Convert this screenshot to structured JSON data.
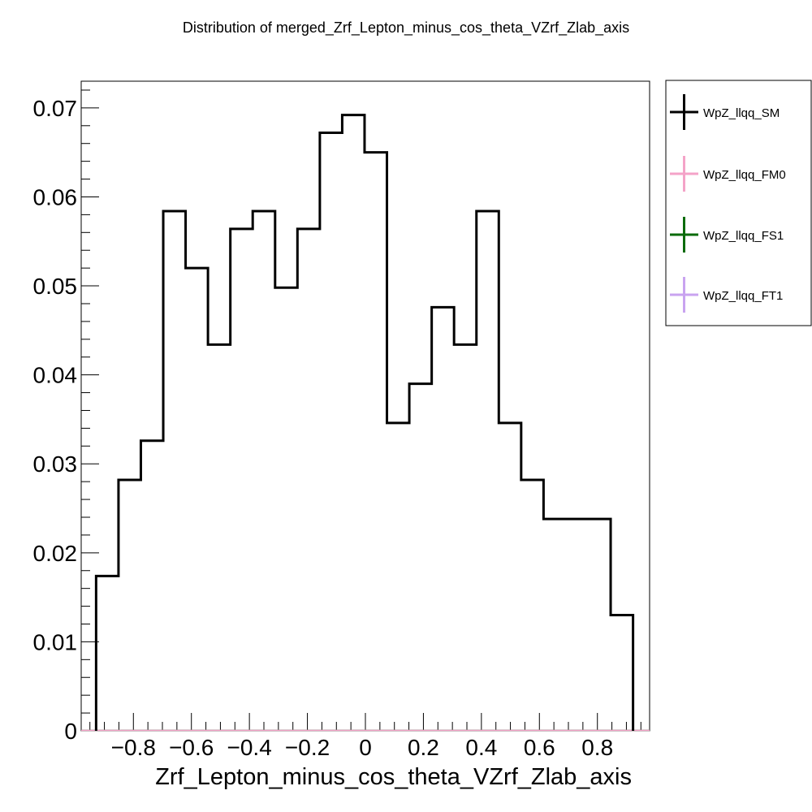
{
  "chart_data": {
    "type": "histogram",
    "title": "Distribution of merged_Zrf_Lepton_minus_cos_theta_VZrf_Zlab_axis",
    "xlabel": "Zrf_Lepton_minus_cos_theta_VZrf_Zlab_axis",
    "ylabel": "",
    "xlim": [
      -0.98,
      0.98
    ],
    "ylim": [
      0,
      0.073
    ],
    "grid": false,
    "legend_position": "right",
    "x_ticks": [
      -0.8,
      -0.6,
      -0.4,
      -0.2,
      0,
      0.2,
      0.4,
      0.6,
      0.8
    ],
    "x_tick_labels": [
      "−0.8",
      "−0.6",
      "−0.4",
      "−0.2",
      "0",
      "0.2",
      "0.4",
      "0.6",
      "0.8"
    ],
    "y_ticks": [
      0,
      0.01,
      0.02,
      0.03,
      0.04,
      0.05,
      0.06,
      0.07
    ],
    "y_tick_labels": [
      "0",
      "0.01",
      "0.02",
      "0.03",
      "0.04",
      "0.05",
      "0.06",
      "0.07"
    ],
    "bin_edges": [
      -0.9286,
      -0.8514,
      -0.7743,
      -0.6971,
      -0.62,
      -0.5429,
      -0.4657,
      -0.3886,
      -0.3114,
      -0.2343,
      -0.1571,
      -0.08,
      -0.0029,
      0.0743,
      0.1514,
      0.2286,
      0.3057,
      0.3829,
      0.46,
      0.5371,
      0.6143,
      0.6914,
      0.7686,
      0.8457,
      0.9229
    ],
    "series": [
      {
        "name": "WpZ_llqq_SM",
        "color": "#000000",
        "values": [
          0.0174,
          0.0282,
          0.0326,
          0.0584,
          0.052,
          0.0434,
          0.0564,
          0.0584,
          0.0498,
          0.0564,
          0.0672,
          0.0692,
          0.065,
          0.0346,
          0.039,
          0.0476,
          0.0434,
          0.0584,
          0.0346,
          0.0282,
          0.0238,
          0.0238,
          0.0238,
          0.013
        ]
      },
      {
        "name": "WpZ_llqq_FM0",
        "color": "#f4a3c8",
        "values": [
          0,
          0,
          0,
          0,
          0,
          0,
          0,
          0,
          0,
          0,
          0,
          0,
          0,
          0,
          0,
          0,
          0,
          0,
          0,
          0,
          0,
          0,
          0,
          0
        ]
      },
      {
        "name": "WpZ_llqq_FS1",
        "color": "#0a6b0a",
        "values": [
          0,
          0,
          0,
          0,
          0,
          0,
          0,
          0,
          0,
          0,
          0,
          0,
          0,
          0,
          0,
          0,
          0,
          0,
          0,
          0,
          0,
          0,
          0,
          0
        ]
      },
      {
        "name": "WpZ_llqq_FT1",
        "color": "#c9a3f0",
        "values": [
          0,
          0,
          0,
          0,
          0,
          0,
          0,
          0,
          0,
          0,
          0,
          0,
          0,
          0,
          0,
          0,
          0,
          0,
          0,
          0,
          0,
          0,
          0,
          0
        ]
      }
    ]
  }
}
